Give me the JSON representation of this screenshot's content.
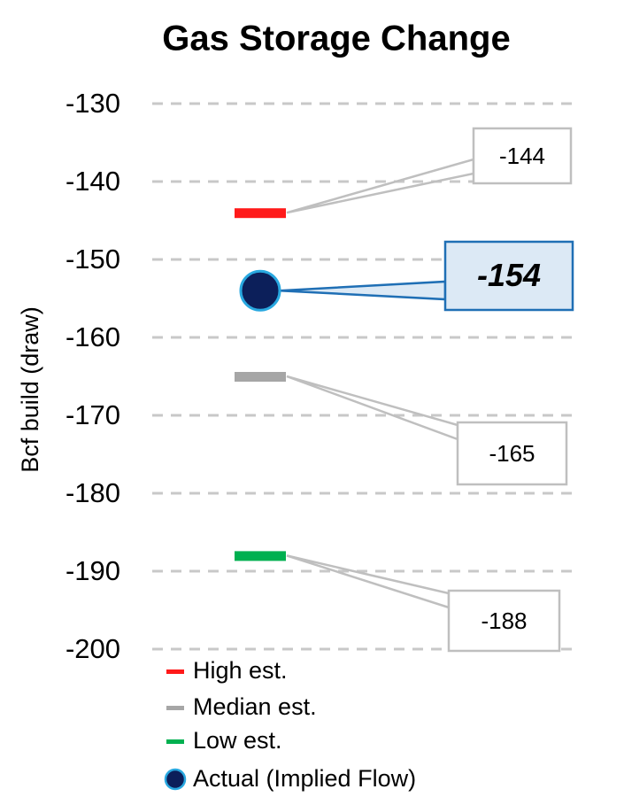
{
  "chart_data": {
    "type": "dot",
    "title": "Gas Storage Change",
    "y_label": "Bcf build (draw)",
    "ylim": [
      -200,
      -130
    ],
    "yticks": [
      -200,
      -190,
      -180,
      -170,
      -160,
      -150,
      -140,
      -130
    ],
    "grid": true,
    "legend": "bottom",
    "series": [
      {
        "name": "High est.",
        "color": "#ff1a1a",
        "marker": "dash",
        "values": [
          -144
        ]
      },
      {
        "name": "Median est.",
        "color": "#a6a6a6",
        "marker": "dash",
        "values": [
          -165
        ]
      },
      {
        "name": "Low est.",
        "color": "#00b050",
        "marker": "dash",
        "values": [
          -188
        ]
      },
      {
        "name": "Actual (Implied Flow)",
        "color": "#0c1f5a",
        "edge_color": "#29a8e0",
        "marker": "circle",
        "values": [
          -154
        ]
      }
    ]
  }
}
